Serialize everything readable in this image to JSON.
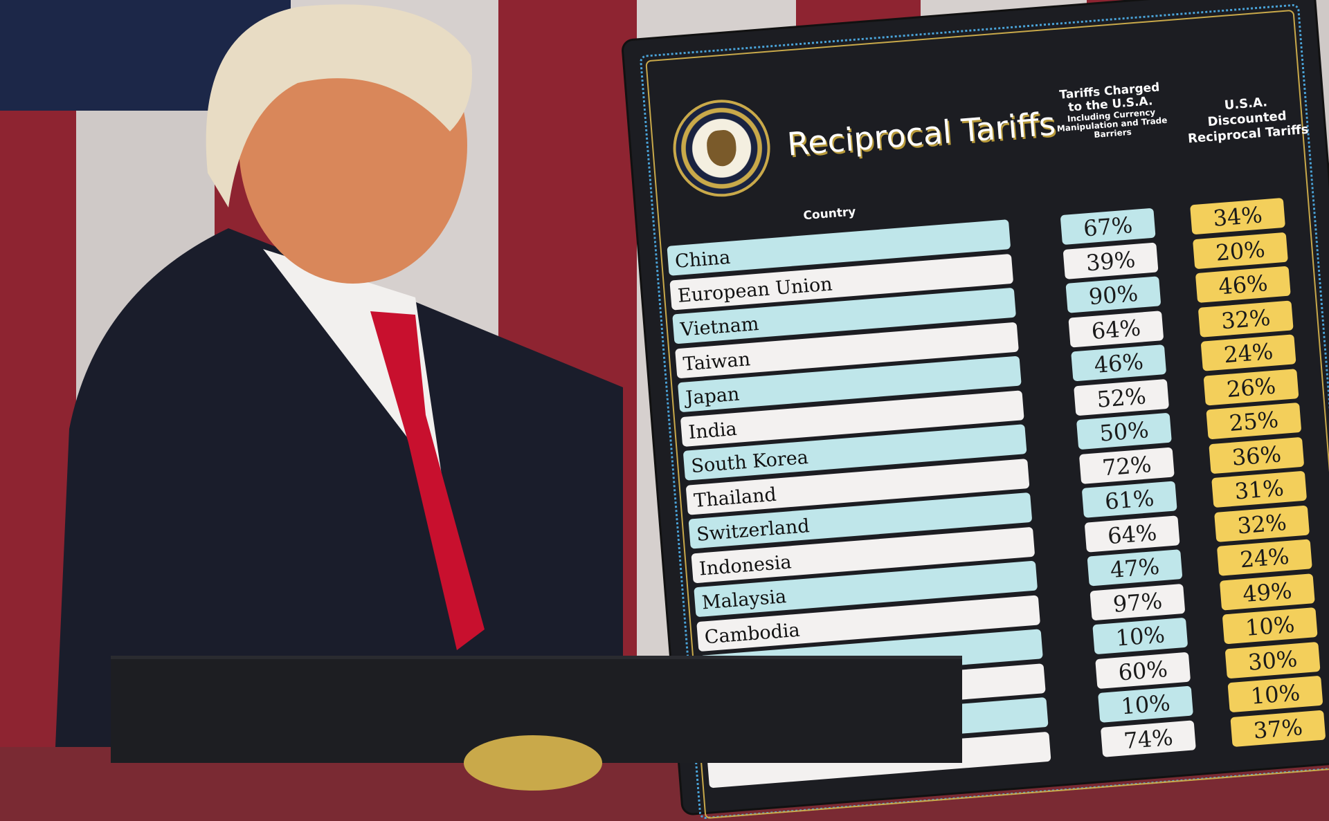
{
  "board": {
    "title": "Reciprocal Tariffs",
    "seal_text": "SEAL OF THE PRESIDENT OF THE UNITED STATES",
    "column_country": "Country",
    "column_charged": "Tariffs Charged to the U.S.A.",
    "column_charged_note": "Including Currency Manipulation and Trade Barriers",
    "column_discounted": "U.S.A. Discounted Reciprocal Tariffs",
    "rows": [
      {
        "country": "China",
        "charged": "67%",
        "discounted": "34%"
      },
      {
        "country": "European Union",
        "charged": "39%",
        "discounted": "20%"
      },
      {
        "country": "Vietnam",
        "charged": "90%",
        "discounted": "46%"
      },
      {
        "country": "Taiwan",
        "charged": "64%",
        "discounted": "32%"
      },
      {
        "country": "Japan",
        "charged": "46%",
        "discounted": "24%"
      },
      {
        "country": "India",
        "charged": "52%",
        "discounted": "26%"
      },
      {
        "country": "South Korea",
        "charged": "50%",
        "discounted": "25%"
      },
      {
        "country": "Thailand",
        "charged": "72%",
        "discounted": "36%"
      },
      {
        "country": "Switzerland",
        "charged": "61%",
        "discounted": "31%"
      },
      {
        "country": "Indonesia",
        "charged": "64%",
        "discounted": "32%"
      },
      {
        "country": "Malaysia",
        "charged": "47%",
        "discounted": "24%"
      },
      {
        "country": "Cambodia",
        "charged": "97%",
        "discounted": "49%"
      },
      {
        "country": "",
        "charged": "10%",
        "discounted": "10%"
      },
      {
        "country": "",
        "charged": "60%",
        "discounted": "30%"
      },
      {
        "country": "",
        "charged": "10%",
        "discounted": "10%"
      },
      {
        "country": "",
        "charged": "74%",
        "discounted": "37%"
      }
    ]
  },
  "colors": {
    "flag_red": "#8e2431",
    "flag_white": "#d9d4d2",
    "board_bg": "#1c1d22",
    "row_blue": "#bfe6ea",
    "row_white": "#f3f1f0",
    "discount_yellow": "#f3cf5b",
    "tie_red": "#c8102e"
  }
}
